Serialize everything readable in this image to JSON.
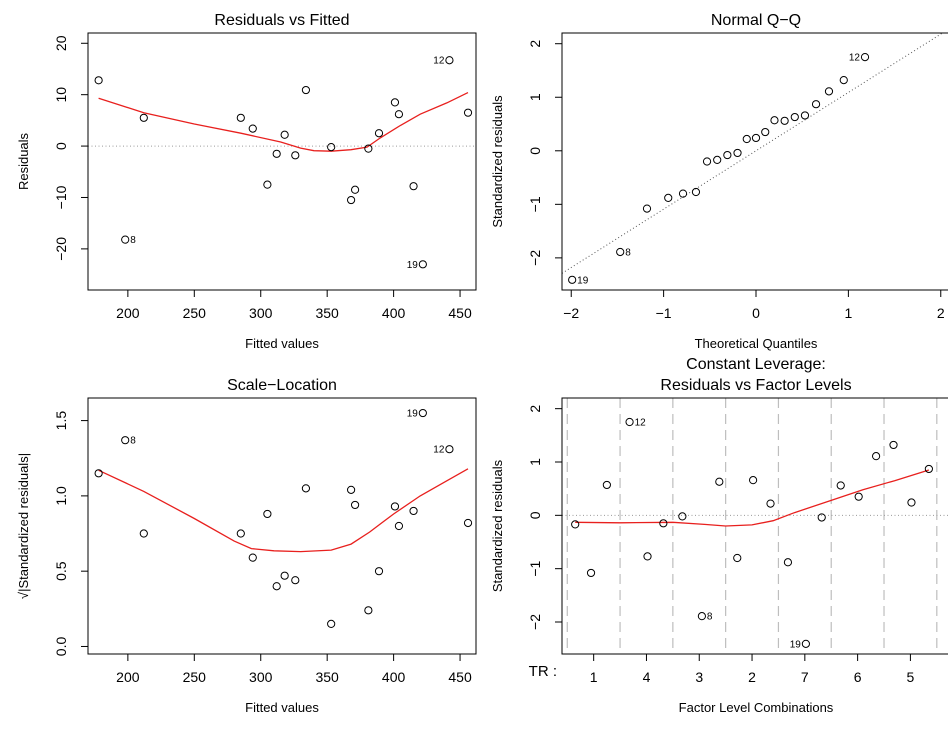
{
  "chart_data": [
    {
      "type": "scatter",
      "title": "Residuals vs Fitted",
      "xlabel": "Fitted values",
      "ylabel": "Residuals",
      "xlim": [
        170,
        462
      ],
      "ylim": [
        -28,
        22
      ],
      "xticks": [
        200,
        250,
        300,
        350,
        400,
        450
      ],
      "yticks": [
        -20,
        -10,
        0,
        10,
        20
      ],
      "yticklabels": [
        "−20",
        "−10",
        "0",
        "10",
        "20"
      ],
      "refline": 0,
      "points": [
        [
          178,
          12.8
        ],
        [
          198,
          -18.2
        ],
        [
          212,
          5.5
        ],
        [
          285,
          5.5
        ],
        [
          294,
          3.4
        ],
        [
          305,
          -7.5
        ],
        [
          312,
          -1.5
        ],
        [
          318,
          2.2
        ],
        [
          326,
          -1.8
        ],
        [
          334,
          10.9
        ],
        [
          353,
          -0.2
        ],
        [
          368,
          -10.5
        ],
        [
          371,
          -8.5
        ],
        [
          381,
          -0.5
        ],
        [
          389,
          2.5
        ],
        [
          401,
          8.5
        ],
        [
          404,
          6.2
        ],
        [
          415,
          -7.8
        ],
        [
          422,
          -23.0
        ],
        [
          442,
          16.7
        ],
        [
          456,
          6.5
        ]
      ],
      "labels": [
        {
          "index": 1,
          "text": "8",
          "side": "right"
        },
        {
          "index": 18,
          "text": "19",
          "side": "left"
        },
        {
          "index": 19,
          "text": "12",
          "side": "left"
        }
      ],
      "smooth": [
        [
          178,
          9.3
        ],
        [
          212,
          6.5
        ],
        [
          250,
          4.3
        ],
        [
          285,
          2.5
        ],
        [
          315,
          0.8
        ],
        [
          330,
          -0.4
        ],
        [
          340,
          -0.9
        ],
        [
          353,
          -1.0
        ],
        [
          368,
          -0.7
        ],
        [
          380,
          -0.2
        ],
        [
          390,
          1.6
        ],
        [
          405,
          4.0
        ],
        [
          420,
          6.2
        ],
        [
          440,
          8.4
        ],
        [
          456,
          10.4
        ]
      ]
    },
    {
      "type": "scatter",
      "title": "Normal Q−Q",
      "xlabel": "Theoretical Quantiles",
      "ylabel": "Standardized residuals",
      "xlim": [
        -2.1,
        2.1
      ],
      "ylim": [
        -2.6,
        2.2
      ],
      "xticks": [
        -2,
        -1,
        0,
        1,
        2
      ],
      "xticklabels": [
        "−2",
        "−1",
        "0",
        "1",
        "2"
      ],
      "yticks": [
        -2,
        -1,
        0,
        1,
        2
      ],
      "yticklabels": [
        "−2",
        "−1",
        "0",
        "1",
        "2"
      ],
      "refline_slope": 1.09,
      "points": [
        [
          -1.99,
          -2.41
        ],
        [
          -1.47,
          -1.89
        ],
        [
          -1.18,
          -1.08
        ],
        [
          -0.95,
          -0.88
        ],
        [
          -0.79,
          -0.8
        ],
        [
          -0.65,
          -0.77
        ],
        [
          -0.53,
          -0.2
        ],
        [
          -0.42,
          -0.17
        ],
        [
          -0.31,
          -0.08
        ],
        [
          -0.2,
          -0.04
        ],
        [
          -0.1,
          0.22
        ],
        [
          0,
          0.24
        ],
        [
          0.1,
          0.35
        ],
        [
          0.2,
          0.57
        ],
        [
          0.31,
          0.56
        ],
        [
          0.42,
          0.63
        ],
        [
          0.53,
          0.66
        ],
        [
          0.65,
          0.87
        ],
        [
          0.79,
          1.11
        ],
        [
          0.95,
          1.32
        ],
        [
          1.18,
          1.75
        ]
      ],
      "labels": [
        {
          "index": 0,
          "text": "19",
          "side": "right"
        },
        {
          "index": 1,
          "text": "8",
          "side": "right"
        },
        {
          "index": 20,
          "text": "12",
          "side": "left"
        }
      ]
    },
    {
      "type": "scatter",
      "title": "Scale−Location",
      "xlabel": "Fitted values",
      "ylabel": "√|Standardized residuals|",
      "xlim": [
        170,
        462
      ],
      "ylim": [
        -0.05,
        1.65
      ],
      "xticks": [
        200,
        250,
        300,
        350,
        400,
        450
      ],
      "yticks": [
        0,
        0.5,
        1,
        1.5
      ],
      "yticklabels": [
        "0.0",
        "0.5",
        "1.0",
        "1.5"
      ],
      "points": [
        [
          178,
          1.15
        ],
        [
          198,
          1.37
        ],
        [
          212,
          0.75
        ],
        [
          285,
          0.75
        ],
        [
          294,
          0.59
        ],
        [
          305,
          0.88
        ],
        [
          312,
          0.4
        ],
        [
          318,
          0.47
        ],
        [
          326,
          0.44
        ],
        [
          334,
          1.05
        ],
        [
          353,
          0.15
        ],
        [
          368,
          1.04
        ],
        [
          371,
          0.94
        ],
        [
          381,
          0.24
        ],
        [
          389,
          0.5
        ],
        [
          401,
          0.93
        ],
        [
          404,
          0.8
        ],
        [
          415,
          0.9
        ],
        [
          422,
          1.55
        ],
        [
          442,
          1.31
        ],
        [
          456,
          0.82
        ]
      ],
      "labels": [
        {
          "index": 1,
          "text": "8",
          "side": "right"
        },
        {
          "index": 18,
          "text": "19",
          "side": "left"
        },
        {
          "index": 19,
          "text": "12",
          "side": "left"
        }
      ],
      "smooth": [
        [
          178,
          1.17
        ],
        [
          212,
          1.03
        ],
        [
          250,
          0.85
        ],
        [
          280,
          0.7
        ],
        [
          293,
          0.65
        ],
        [
          310,
          0.635
        ],
        [
          330,
          0.63
        ],
        [
          353,
          0.64
        ],
        [
          368,
          0.68
        ],
        [
          382,
          0.76
        ],
        [
          400,
          0.88
        ],
        [
          420,
          1.0
        ],
        [
          440,
          1.1
        ],
        [
          456,
          1.18
        ]
      ]
    },
    {
      "type": "scatter",
      "title": "Constant Leverage:",
      "subtitle": "Residuals vs Factor Levels",
      "xlabel": "Factor Level Combinations",
      "ylabel": "Standardized residuals",
      "xlim": [
        -0.1,
        7.25
      ],
      "ylim": [
        -2.6,
        2.2
      ],
      "yticks": [
        -2,
        -1,
        0,
        1,
        2
      ],
      "yticklabels": [
        "−2",
        "−1",
        "0",
        "1",
        "2"
      ],
      "refline": 0,
      "factor_prefix": "TR :",
      "factor_levels": [
        "1",
        "4",
        "3",
        "2",
        "7",
        "6",
        "5"
      ],
      "group_boundaries": [
        0,
        1,
        2,
        3,
        4,
        5,
        6,
        7
      ],
      "points": [
        [
          0.15,
          -0.17
        ],
        [
          0.45,
          -1.08
        ],
        [
          0.75,
          0.57
        ],
        [
          1.18,
          1.75
        ],
        [
          1.52,
          -0.77
        ],
        [
          1.82,
          -0.15
        ],
        [
          2.18,
          -0.02
        ],
        [
          2.55,
          -1.89
        ],
        [
          2.88,
          0.63
        ],
        [
          3.22,
          -0.8
        ],
        [
          3.52,
          0.66
        ],
        [
          3.85,
          0.22
        ],
        [
          4.18,
          -0.88
        ],
        [
          4.52,
          -2.41
        ],
        [
          4.82,
          -0.04
        ],
        [
          5.18,
          0.56
        ],
        [
          5.52,
          0.35
        ],
        [
          5.85,
          1.11
        ],
        [
          6.18,
          1.32
        ],
        [
          6.52,
          0.24
        ],
        [
          6.85,
          0.87
        ]
      ],
      "labels": [
        {
          "index": 3,
          "text": "12",
          "side": "right"
        },
        {
          "index": 7,
          "text": "8",
          "side": "right"
        },
        {
          "index": 13,
          "text": "19",
          "side": "left"
        }
      ],
      "smooth": [
        [
          0.15,
          -0.13
        ],
        [
          1.0,
          -0.14
        ],
        [
          2.0,
          -0.13
        ],
        [
          2.6,
          -0.17
        ],
        [
          3.0,
          -0.2
        ],
        [
          3.5,
          -0.18
        ],
        [
          3.9,
          -0.1
        ],
        [
          4.3,
          0.05
        ],
        [
          5.0,
          0.28
        ],
        [
          5.6,
          0.48
        ],
        [
          6.2,
          0.65
        ],
        [
          6.85,
          0.85
        ]
      ]
    }
  ]
}
